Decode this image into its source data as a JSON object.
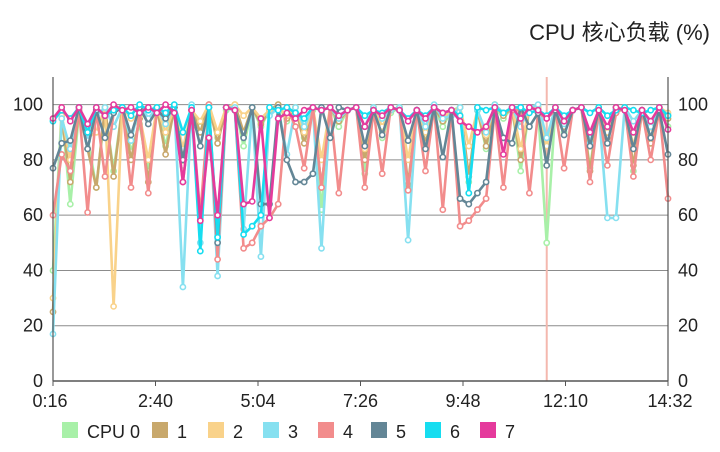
{
  "chart_data": {
    "type": "line",
    "title": "CPU 核心负载 (%)",
    "xlabel": "",
    "ylabel": "",
    "ylim": [
      0,
      110
    ],
    "x_ticks": [
      "0:16",
      "2:40",
      "5:04",
      "7:26",
      "9:48",
      "12:10",
      "14:32"
    ],
    "y_ticks": [
      0,
      20,
      40,
      60,
      80,
      100
    ],
    "grid": true,
    "legend_position": "bottom-left",
    "marker_line": {
      "index": 57,
      "color": "#f4b8ae"
    },
    "series": [
      {
        "name": "CPU 0",
        "color": "#a8f0a8",
        "values": [
          40,
          98,
          64,
          97,
          88,
          70,
          98,
          76,
          99,
          83,
          93,
          76,
          99,
          85,
          99,
          78,
          98,
          92,
          99,
          88,
          98,
          99,
          85,
          99,
          92,
          98,
          100,
          94,
          99,
          88,
          98,
          62,
          99,
          92,
          98,
          99,
          75,
          99,
          88,
          97,
          99,
          70,
          98,
          86,
          99,
          92,
          98,
          99,
          72,
          98,
          84,
          99,
          95,
          99,
          76,
          99,
          98,
          50,
          99,
          90,
          98,
          99,
          77,
          99,
          89,
          98,
          99,
          76,
          97,
          88,
          99,
          92
        ]
      },
      {
        "name": "1",
        "color": "#c8a86c",
        "values": [
          25,
          96,
          72,
          98,
          84,
          70,
          99,
          74,
          99,
          80,
          95,
          72,
          99,
          82,
          99,
          80,
          98,
          90,
          100,
          86,
          99,
          100,
          90,
          99,
          93,
          98,
          100,
          95,
          99,
          86,
          99,
          70,
          99,
          94,
          98,
          99,
          80,
          99,
          90,
          98,
          99,
          71,
          98,
          86,
          99,
          94,
          97,
          99,
          74,
          98,
          85,
          100,
          96,
          99,
          80,
          99,
          99,
          78,
          99,
          92,
          98,
          99,
          76,
          98,
          88,
          97,
          99,
          78,
          98,
          86,
          99,
          95
        ]
      },
      {
        "name": "2",
        "color": "#f9d28a",
        "values": [
          30,
          96,
          80,
          99,
          88,
          90,
          99,
          27,
          99,
          95,
          96,
          80,
          99,
          90,
          99,
          84,
          98,
          94,
          100,
          90,
          99,
          100,
          96,
          99,
          95,
          98,
          99,
          96,
          99,
          90,
          99,
          80,
          99,
          95,
          98,
          99,
          84,
          99,
          92,
          98,
          99,
          80,
          98,
          90,
          99,
          96,
          97,
          99,
          85,
          98,
          89,
          100,
          97,
          99,
          84,
          99,
          99,
          85,
          99,
          94,
          98,
          99,
          85,
          98,
          90,
          97,
          99,
          85,
          98,
          90,
          99,
          97
        ]
      },
      {
        "name": "3",
        "color": "#86e0f0",
        "values": [
          17,
          95,
          84,
          99,
          87,
          96,
          99,
          92,
          99,
          87,
          100,
          95,
          99,
          93,
          100,
          34,
          100,
          50,
          100,
          38,
          99,
          99,
          55,
          99,
          45,
          96,
          99,
          82,
          99,
          92,
          99,
          48,
          99,
          95,
          98,
          99,
          92,
          99,
          95,
          98,
          99,
          51,
          98,
          92,
          100,
          95,
          96,
          99,
          68,
          98,
          90,
          100,
          97,
          99,
          92,
          99,
          100,
          88,
          99,
          93,
          98,
          99,
          86,
          98,
          59,
          59,
          99,
          94,
          98,
          92,
          99,
          96
        ]
      },
      {
        "name": "4",
        "color": "#f28c8c",
        "values": [
          60,
          82,
          76,
          99,
          61,
          98,
          74,
          97,
          99,
          70,
          98,
          68,
          98,
          96,
          99,
          72,
          98,
          60,
          100,
          44,
          99,
          98,
          48,
          50,
          56,
          59,
          64,
          99,
          92,
          77,
          99,
          70,
          99,
          68,
          98,
          99,
          70,
          98,
          75,
          99,
          98,
          69,
          98,
          76,
          99,
          62,
          98,
          56,
          58,
          62,
          66,
          98,
          70,
          98,
          98,
          68,
          97,
          95,
          98,
          77,
          98,
          99,
          72,
          98,
          78,
          97,
          99,
          74,
          98,
          80,
          98,
          66
        ]
      },
      {
        "name": "5",
        "color": "#638696",
        "values": [
          77,
          86,
          87,
          99,
          84,
          98,
          88,
          97,
          99,
          89,
          99,
          93,
          98,
          95,
          99,
          80,
          98,
          85,
          99,
          50,
          99,
          98,
          88,
          99,
          64,
          64,
          99,
          80,
          72,
          72,
          75,
          99,
          88,
          99,
          98,
          99,
          85,
          98,
          89,
          99,
          98,
          87,
          98,
          84,
          99,
          81,
          98,
          66,
          64,
          68,
          72,
          99,
          88,
          86,
          99,
          92,
          97,
          78,
          98,
          89,
          98,
          99,
          85,
          98,
          86,
          99,
          98,
          84,
          98,
          88,
          98,
          82
        ]
      },
      {
        "name": "6",
        "color": "#16ddf0",
        "values": [
          94,
          98,
          95,
          99,
          90,
          99,
          96,
          98,
          99,
          96,
          100,
          98,
          99,
          97,
          100,
          90,
          99,
          47,
          99,
          52,
          99,
          98,
          53,
          56,
          60,
          99,
          98,
          99,
          97,
          95,
          99,
          98,
          99,
          96,
          98,
          99,
          96,
          98,
          97,
          99,
          98,
          95,
          98,
          96,
          99,
          97,
          98,
          96,
          68,
          99,
          98,
          99,
          97,
          99,
          99,
          97,
          98,
          96,
          99,
          96,
          98,
          99,
          97,
          99,
          96,
          98,
          99,
          98,
          97,
          98,
          99,
          96
        ]
      },
      {
        "name": "7",
        "color": "#e53a9c",
        "values": [
          95,
          99,
          94,
          99,
          93,
          99,
          96,
          100,
          98,
          99,
          97,
          99,
          97,
          100,
          97,
          72,
          98,
          58,
          88,
          60,
          99,
          98,
          64,
          65,
          95,
          59,
          95,
          97,
          95,
          98,
          99,
          98,
          99,
          96,
          98,
          99,
          92,
          98,
          96,
          99,
          98,
          94,
          98,
          95,
          99,
          97,
          98,
          94,
          92,
          90,
          92,
          99,
          82,
          99,
          95,
          99,
          98,
          95,
          99,
          94,
          98,
          99,
          90,
          98,
          92,
          99,
          98,
          90,
          98,
          94,
          99,
          91
        ]
      }
    ]
  }
}
